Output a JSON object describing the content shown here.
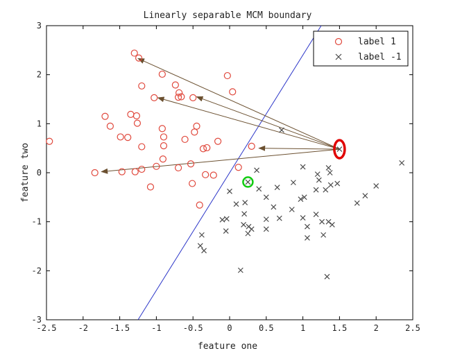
{
  "chart_data": {
    "type": "scatter",
    "title": "Linearly separable MCM boundary",
    "xlabel": "feature one",
    "ylabel": "feature two",
    "xlim": [
      -2.5,
      2.5
    ],
    "ylim": [
      -3,
      3
    ],
    "xticks": [
      -2.5,
      -2,
      -1.5,
      -1,
      -0.5,
      0,
      0.5,
      1,
      1.5,
      2,
      2.5
    ],
    "xtick_labels": [
      "-2.5",
      "-2",
      "-1.5",
      "-1",
      "-0.5",
      "0",
      "0.5",
      "1",
      "1.5",
      "2",
      "2.5"
    ],
    "yticks": [
      -3,
      -2,
      -1,
      0,
      1,
      2,
      3
    ],
    "ytick_labels": [
      "-3",
      "-2",
      "-1",
      "0",
      "1",
      "2",
      "3"
    ],
    "legend_position": "top-right",
    "series": [
      {
        "name": "label 1",
        "marker": "circle",
        "color": "#e0483c",
        "points": [
          [
            -2.46,
            0.64
          ],
          [
            -1.3,
            2.44
          ],
          [
            -1.24,
            2.34
          ],
          [
            -1.2,
            1.77
          ],
          [
            -0.92,
            2.01
          ],
          [
            -0.03,
            1.98
          ],
          [
            0.04,
            1.65
          ],
          [
            -0.74,
            1.79
          ],
          [
            -0.69,
            1.63
          ],
          [
            -0.7,
            1.54
          ],
          [
            -0.66,
            1.55
          ],
          [
            -0.5,
            1.53
          ],
          [
            -1.03,
            1.53
          ],
          [
            -1.7,
            1.15
          ],
          [
            -1.63,
            0.95
          ],
          [
            -1.35,
            1.19
          ],
          [
            -1.27,
            1.16
          ],
          [
            -1.26,
            1.01
          ],
          [
            -1.49,
            0.73
          ],
          [
            -1.39,
            0.72
          ],
          [
            -1.2,
            0.53
          ],
          [
            -0.92,
            0.9
          ],
          [
            -0.9,
            0.73
          ],
          [
            -0.9,
            0.55
          ],
          [
            -0.61,
            0.68
          ],
          [
            -0.48,
            0.83
          ],
          [
            -0.45,
            0.95
          ],
          [
            -0.36,
            0.49
          ],
          [
            -0.31,
            0.51
          ],
          [
            -0.16,
            0.64
          ],
          [
            0.3,
            0.54
          ],
          [
            -0.7,
            0.1
          ],
          [
            -0.91,
            0.28
          ],
          [
            -1.0,
            0.13
          ],
          [
            -1.2,
            0.07
          ],
          [
            -1.29,
            0.02
          ],
          [
            -1.47,
            0.02
          ],
          [
            -1.84,
            0.0
          ],
          [
            -1.08,
            -0.29
          ],
          [
            -0.53,
            0.18
          ],
          [
            -0.51,
            -0.22
          ],
          [
            -0.22,
            -0.05
          ],
          [
            -0.33,
            -0.04
          ],
          [
            -0.41,
            -0.66
          ],
          [
            0.12,
            0.11
          ]
        ]
      },
      {
        "name": "label -1",
        "marker": "x",
        "color": "#4a4a4a",
        "points": [
          [
            0.71,
            0.87
          ],
          [
            1.5,
            0.48
          ],
          [
            0.37,
            0.05
          ],
          [
            0.25,
            -0.19
          ],
          [
            0.4,
            -0.33
          ],
          [
            0.0,
            -0.38
          ],
          [
            0.09,
            -0.64
          ],
          [
            0.21,
            -0.61
          ],
          [
            0.2,
            -0.84
          ],
          [
            0.26,
            -1.1
          ],
          [
            0.19,
            -1.06
          ],
          [
            0.25,
            -1.24
          ],
          [
            0.3,
            -1.15
          ],
          [
            -0.04,
            -0.94
          ],
          [
            -0.1,
            -0.96
          ],
          [
            -0.05,
            -1.19
          ],
          [
            -0.38,
            -1.27
          ],
          [
            -0.4,
            -1.49
          ],
          [
            -0.35,
            -1.59
          ],
          [
            0.15,
            -1.99
          ],
          [
            0.5,
            -0.5
          ],
          [
            0.6,
            -0.7
          ],
          [
            0.5,
            -0.95
          ],
          [
            0.5,
            -1.15
          ],
          [
            0.68,
            -0.93
          ],
          [
            0.65,
            -0.3
          ],
          [
            0.87,
            -0.2
          ],
          [
            0.85,
            -0.75
          ],
          [
            1.0,
            0.12
          ],
          [
            1.02,
            -0.5
          ],
          [
            0.97,
            -0.54
          ],
          [
            1.0,
            -0.92
          ],
          [
            1.06,
            -1.1
          ],
          [
            1.06,
            -1.33
          ],
          [
            1.18,
            -0.35
          ],
          [
            1.18,
            -0.85
          ],
          [
            1.2,
            -0.03
          ],
          [
            1.22,
            -0.15
          ],
          [
            1.26,
            -1.0
          ],
          [
            1.31,
            -0.35
          ],
          [
            1.38,
            -0.25
          ],
          [
            1.35,
            0.1
          ],
          [
            1.37,
            0.0
          ],
          [
            1.47,
            -0.22
          ],
          [
            1.35,
            -1.0
          ],
          [
            1.28,
            -1.27
          ],
          [
            1.4,
            -1.06
          ],
          [
            1.33,
            -2.12
          ],
          [
            1.74,
            -0.62
          ],
          [
            1.85,
            -0.47
          ],
          [
            2.0,
            -0.27
          ],
          [
            2.35,
            0.2
          ]
        ]
      }
    ],
    "boundary_line": {
      "color": "#2b35c8",
      "points": [
        [
          -1.25,
          -3.0
        ],
        [
          1.25,
          3.0
        ]
      ]
    },
    "arrows": {
      "color": "#6b5030",
      "from": [
        1.5,
        0.48
      ],
      "to": [
        [
          -1.25,
          2.33
        ],
        [
          -0.98,
          1.53
        ],
        [
          -0.45,
          1.55
        ],
        [
          0.4,
          0.5
        ],
        [
          -1.75,
          0.02
        ]
      ]
    },
    "highlights": [
      {
        "shape": "ellipse",
        "color": "#e00000",
        "center": [
          1.5,
          0.48
        ]
      },
      {
        "shape": "circle",
        "color": "#10cc10",
        "center": [
          0.25,
          -0.19
        ]
      }
    ]
  }
}
